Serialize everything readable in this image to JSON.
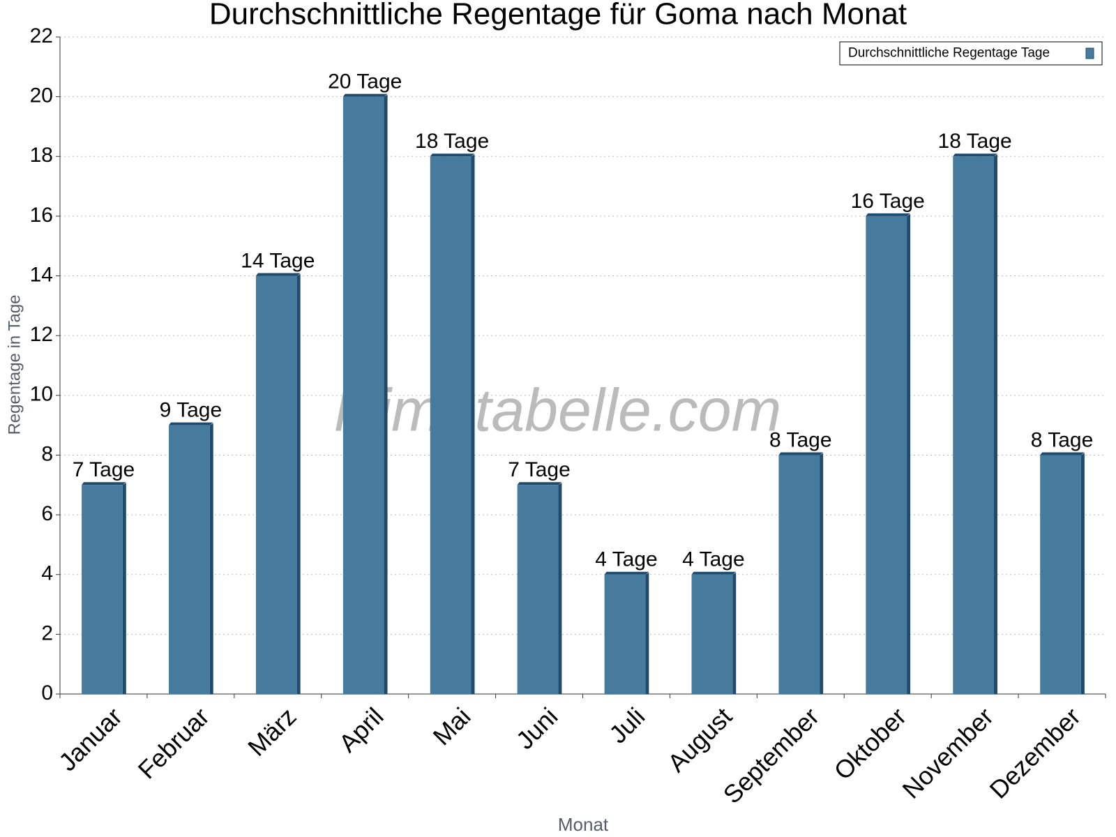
{
  "chart_data": {
    "type": "bar",
    "title": "Durchschnittliche Regentage für Goma nach Monat",
    "watermark": "klimatabelle.com",
    "x_label": "Monat",
    "y_label": "Regentage in Tage",
    "categories": [
      "Januar",
      "Februar",
      "März",
      "April",
      "Mai",
      "Juni",
      "Juli",
      "August",
      "September",
      "Oktober",
      "November",
      "Dezember"
    ],
    "series": [
      {
        "name": "Durchschnittliche Regentage Tage",
        "color": "#467b9e",
        "values": [
          7,
          9,
          14,
          20,
          18,
          7,
          4,
          4,
          8,
          16,
          18,
          8
        ],
        "value_labels": [
          "7 Tage",
          "9 Tage",
          "14 Tage",
          "20 Tage",
          "18 Tage",
          "7 Tage",
          "4 Tage",
          "4 Tage",
          "8 Tage",
          "16 Tage",
          "18 Tage",
          "8 Tage"
        ]
      }
    ],
    "ylim": [
      0,
      22
    ],
    "yticks": [
      0,
      2,
      4,
      6,
      8,
      10,
      12,
      14,
      16,
      18,
      20,
      22
    ],
    "grid": true,
    "legend": "top-right"
  }
}
